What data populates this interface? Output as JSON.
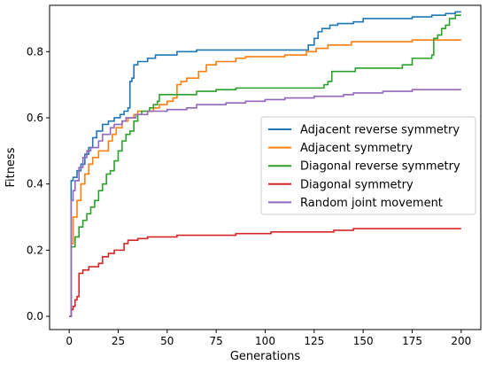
{
  "chart_data": {
    "type": "line",
    "title": "",
    "xlabel": "Generations",
    "ylabel": "Fitness",
    "xlim": [
      -10,
      210
    ],
    "ylim": [
      -0.04,
      0.94
    ],
    "xticks": [
      0,
      25,
      50,
      75,
      100,
      125,
      150,
      175,
      200
    ],
    "yticks": [
      0.0,
      0.2,
      0.4,
      0.6,
      0.8
    ],
    "ytick_labels": [
      "0.0",
      "0.2",
      "0.4",
      "0.6",
      "0.8"
    ],
    "grid": false,
    "legend_position": "center-right",
    "series": [
      {
        "name": "Adjacent reverse symmetry",
        "color": "#1f77b4",
        "points": [
          [
            0,
            0.0
          ],
          [
            1,
            0.41
          ],
          [
            2,
            0.42
          ],
          [
            4,
            0.44
          ],
          [
            6,
            0.46
          ],
          [
            8,
            0.49
          ],
          [
            10,
            0.51
          ],
          [
            12,
            0.54
          ],
          [
            14,
            0.56
          ],
          [
            17,
            0.58
          ],
          [
            20,
            0.59
          ],
          [
            23,
            0.6
          ],
          [
            26,
            0.61
          ],
          [
            28,
            0.62
          ],
          [
            30,
            0.63
          ],
          [
            31,
            0.71
          ],
          [
            32,
            0.72
          ],
          [
            33,
            0.76
          ],
          [
            35,
            0.77
          ],
          [
            38,
            0.77
          ],
          [
            40,
            0.78
          ],
          [
            42,
            0.78
          ],
          [
            44,
            0.79
          ],
          [
            47,
            0.79
          ],
          [
            50,
            0.79
          ],
          [
            55,
            0.8
          ],
          [
            60,
            0.8
          ],
          [
            65,
            0.805
          ],
          [
            100,
            0.805
          ],
          [
            120,
            0.805
          ],
          [
            122,
            0.82
          ],
          [
            124,
            0.82
          ],
          [
            125,
            0.84
          ],
          [
            126,
            0.84
          ],
          [
            127,
            0.86
          ],
          [
            129,
            0.87
          ],
          [
            133,
            0.88
          ],
          [
            137,
            0.885
          ],
          [
            140,
            0.885
          ],
          [
            145,
            0.89
          ],
          [
            150,
            0.9
          ],
          [
            170,
            0.9
          ],
          [
            175,
            0.905
          ],
          [
            185,
            0.91
          ],
          [
            192,
            0.915
          ],
          [
            197,
            0.92
          ],
          [
            200,
            0.92
          ]
        ]
      },
      {
        "name": "Adjacent symmetry",
        "color": "#ff7f0e",
        "points": [
          [
            0,
            0.0
          ],
          [
            1,
            0.22
          ],
          [
            2,
            0.3
          ],
          [
            4,
            0.35
          ],
          [
            6,
            0.4
          ],
          [
            8,
            0.43
          ],
          [
            10,
            0.46
          ],
          [
            12,
            0.48
          ],
          [
            15,
            0.5
          ],
          [
            18,
            0.5
          ],
          [
            20,
            0.53
          ],
          [
            22,
            0.55
          ],
          [
            24,
            0.57
          ],
          [
            27,
            0.59
          ],
          [
            30,
            0.6
          ],
          [
            33,
            0.61
          ],
          [
            35,
            0.62
          ],
          [
            38,
            0.62
          ],
          [
            40,
            0.62
          ],
          [
            43,
            0.63
          ],
          [
            46,
            0.64
          ],
          [
            50,
            0.65
          ],
          [
            53,
            0.66
          ],
          [
            55,
            0.7
          ],
          [
            57,
            0.71
          ],
          [
            60,
            0.72
          ],
          [
            63,
            0.72
          ],
          [
            66,
            0.74
          ],
          [
            70,
            0.76
          ],
          [
            75,
            0.77
          ],
          [
            80,
            0.77
          ],
          [
            85,
            0.78
          ],
          [
            90,
            0.785
          ],
          [
            100,
            0.785
          ],
          [
            110,
            0.79
          ],
          [
            120,
            0.79
          ],
          [
            121,
            0.8
          ],
          [
            126,
            0.81
          ],
          [
            132,
            0.82
          ],
          [
            138,
            0.82
          ],
          [
            144,
            0.83
          ],
          [
            160,
            0.83
          ],
          [
            175,
            0.835
          ],
          [
            200,
            0.835
          ]
        ]
      },
      {
        "name": "Diagonal reverse symmetry",
        "color": "#2ca02c",
        "points": [
          [
            0,
            0.0
          ],
          [
            1,
            0.21
          ],
          [
            3,
            0.24
          ],
          [
            5,
            0.27
          ],
          [
            7,
            0.29
          ],
          [
            9,
            0.31
          ],
          [
            11,
            0.33
          ],
          [
            13,
            0.35
          ],
          [
            15,
            0.38
          ],
          [
            17,
            0.4
          ],
          [
            19,
            0.43
          ],
          [
            21,
            0.44
          ],
          [
            23,
            0.47
          ],
          [
            25,
            0.5
          ],
          [
            27,
            0.53
          ],
          [
            29,
            0.55
          ],
          [
            31,
            0.56
          ],
          [
            33,
            0.59
          ],
          [
            35,
            0.61
          ],
          [
            37,
            0.62
          ],
          [
            39,
            0.62
          ],
          [
            41,
            0.63
          ],
          [
            43,
            0.64
          ],
          [
            45,
            0.65
          ],
          [
            46,
            0.67
          ],
          [
            48,
            0.67
          ],
          [
            55,
            0.67
          ],
          [
            65,
            0.68
          ],
          [
            75,
            0.685
          ],
          [
            85,
            0.69
          ],
          [
            100,
            0.69
          ],
          [
            110,
            0.69
          ],
          [
            120,
            0.69
          ],
          [
            130,
            0.7
          ],
          [
            132,
            0.71
          ],
          [
            134,
            0.74
          ],
          [
            140,
            0.74
          ],
          [
            146,
            0.75
          ],
          [
            160,
            0.75
          ],
          [
            170,
            0.76
          ],
          [
            175,
            0.78
          ],
          [
            185,
            0.79
          ],
          [
            186,
            0.84
          ],
          [
            188,
            0.85
          ],
          [
            190,
            0.87
          ],
          [
            192,
            0.88
          ],
          [
            194,
            0.9
          ],
          [
            197,
            0.91
          ],
          [
            200,
            0.91
          ]
        ]
      },
      {
        "name": "Diagonal symmetry",
        "color": "#d62728",
        "points": [
          [
            0,
            0.0
          ],
          [
            1,
            0.02
          ],
          [
            2,
            0.03
          ],
          [
            3,
            0.05
          ],
          [
            4,
            0.06
          ],
          [
            5,
            0.13
          ],
          [
            7,
            0.14
          ],
          [
            10,
            0.15
          ],
          [
            15,
            0.16
          ],
          [
            17,
            0.18
          ],
          [
            20,
            0.19
          ],
          [
            23,
            0.2
          ],
          [
            25,
            0.2
          ],
          [
            27,
            0.2
          ],
          [
            28,
            0.22
          ],
          [
            30,
            0.23
          ],
          [
            35,
            0.235
          ],
          [
            40,
            0.24
          ],
          [
            50,
            0.24
          ],
          [
            55,
            0.245
          ],
          [
            75,
            0.245
          ],
          [
            85,
            0.25
          ],
          [
            100,
            0.25
          ],
          [
            103,
            0.255
          ],
          [
            125,
            0.255
          ],
          [
            135,
            0.26
          ],
          [
            145,
            0.265
          ],
          [
            175,
            0.265
          ],
          [
            200,
            0.265
          ]
        ]
      },
      {
        "name": "Random joint movement",
        "color": "#9467bd",
        "points": [
          [
            0,
            0.0
          ],
          [
            1,
            0.35
          ],
          [
            2,
            0.38
          ],
          [
            3,
            0.41
          ],
          [
            5,
            0.45
          ],
          [
            7,
            0.48
          ],
          [
            9,
            0.5
          ],
          [
            11,
            0.51
          ],
          [
            13,
            0.51
          ],
          [
            15,
            0.53
          ],
          [
            17,
            0.55
          ],
          [
            19,
            0.55
          ],
          [
            21,
            0.57
          ],
          [
            23,
            0.58
          ],
          [
            25,
            0.58
          ],
          [
            27,
            0.59
          ],
          [
            29,
            0.6
          ],
          [
            31,
            0.6
          ],
          [
            34,
            0.61
          ],
          [
            38,
            0.61
          ],
          [
            40,
            0.62
          ],
          [
            45,
            0.62
          ],
          [
            50,
            0.625
          ],
          [
            60,
            0.63
          ],
          [
            65,
            0.64
          ],
          [
            80,
            0.645
          ],
          [
            90,
            0.65
          ],
          [
            100,
            0.655
          ],
          [
            110,
            0.66
          ],
          [
            125,
            0.665
          ],
          [
            140,
            0.67
          ],
          [
            145,
            0.675
          ],
          [
            155,
            0.675
          ],
          [
            160,
            0.68
          ],
          [
            175,
            0.685
          ],
          [
            200,
            0.685
          ]
        ]
      }
    ]
  }
}
